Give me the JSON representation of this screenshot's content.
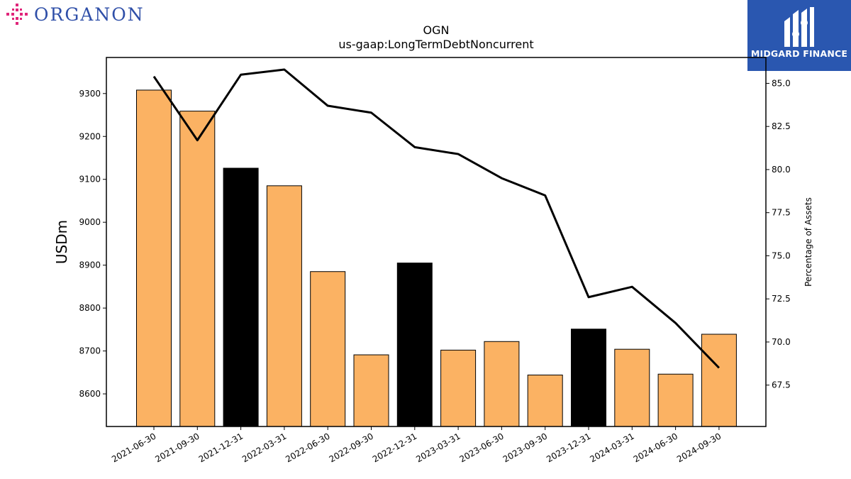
{
  "logos": {
    "left_wordmark": "ORGANON",
    "right_brand": "MIDGARD FINANCE"
  },
  "colors": {
    "bar_default": "#fbb263",
    "bar_highlight": "#000000",
    "line": "#000000",
    "right_logo_bg": "#2a57b0",
    "left_logo": "#2f4fa8",
    "left_logo_mark": "#e0257a"
  },
  "chart_data": {
    "type": "bar",
    "title": "OGN",
    "subtitle": "us-gaap:LongTermDebtNoncurrent",
    "ylabel": "USDm",
    "y2label": "Percentage of Assets",
    "categories": [
      "2021-06-30",
      "2021-09-30",
      "2021-12-31",
      "2022-03-31",
      "2022-06-30",
      "2022-09-30",
      "2022-12-31",
      "2023-03-31",
      "2023-06-30",
      "2023-09-30",
      "2023-12-31",
      "2024-03-31",
      "2024-06-30",
      "2024-09-30"
    ],
    "series": [
      {
        "type": "bar",
        "axis": "left",
        "values": [
          9308,
          9259,
          9126,
          9085,
          8885,
          8691,
          8905,
          8702,
          8722,
          8644,
          8751,
          8704,
          8646,
          8739
        ],
        "highlight": [
          false,
          false,
          true,
          false,
          false,
          false,
          true,
          false,
          false,
          false,
          true,
          false,
          false,
          false
        ]
      },
      {
        "type": "line",
        "axis": "right",
        "values": [
          85.4,
          81.7,
          85.5,
          85.8,
          83.7,
          83.3,
          81.3,
          80.9,
          79.5,
          78.5,
          72.6,
          73.2,
          71.1,
          68.5
        ]
      }
    ],
    "ylim": [
      8524,
      9384
    ],
    "yticks": [
      8600,
      8700,
      8800,
      8900,
      9000,
      9100,
      9200,
      9300
    ],
    "y2lim": [
      65.1,
      86.5
    ],
    "y2ticks": [
      "67.5",
      "70.0",
      "72.5",
      "75.0",
      "77.5",
      "80.0",
      "82.5",
      "85.0"
    ],
    "grid": false,
    "legend": "none"
  }
}
